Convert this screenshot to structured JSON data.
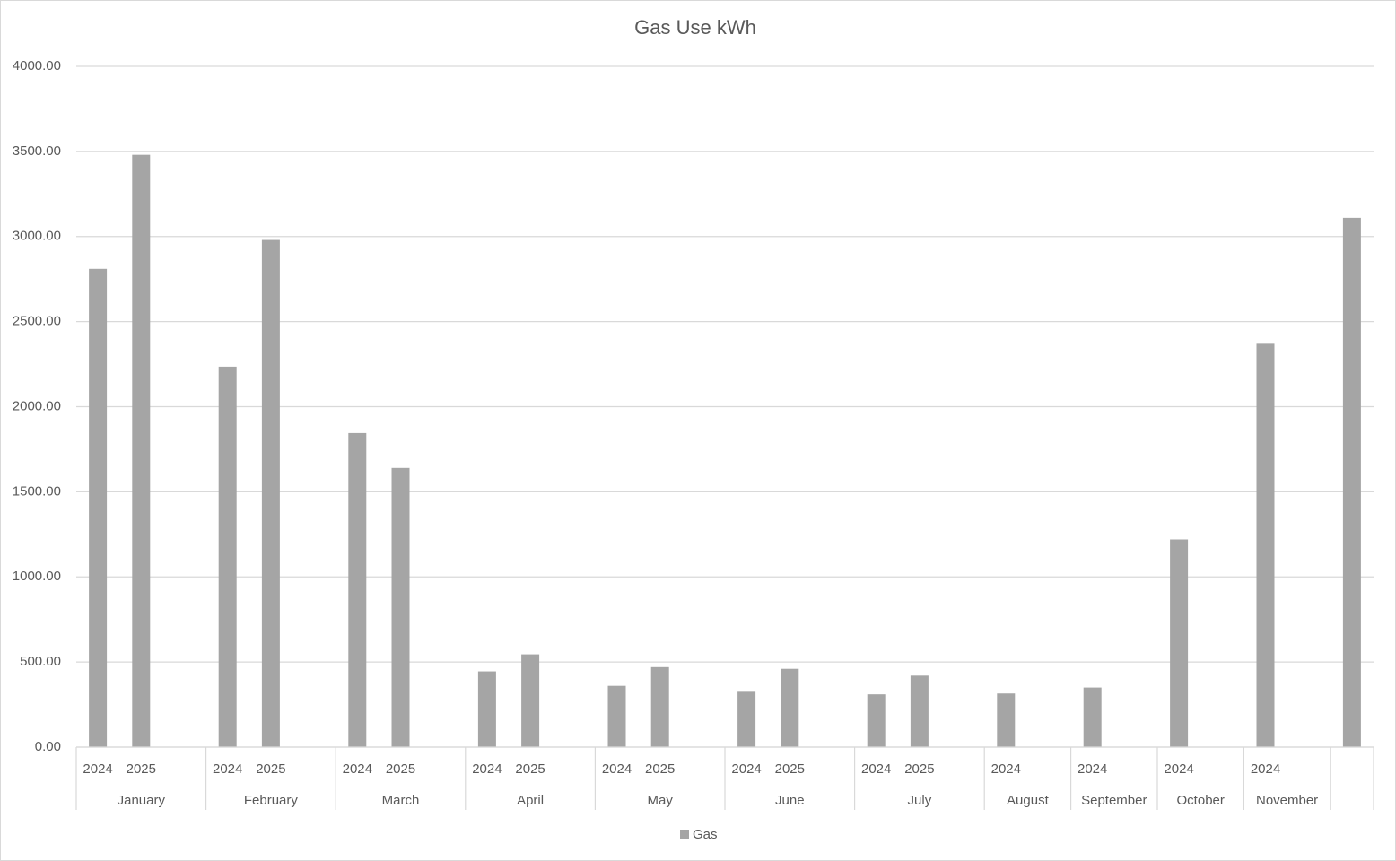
{
  "chart_data": {
    "type": "bar",
    "title": "Gas Use kWh",
    "categories": [
      "2024",
      "2025",
      null,
      "2024",
      "2025",
      null,
      "2024",
      "2025",
      null,
      "2024",
      "2025",
      null,
      "2024",
      "2025",
      null,
      "2024",
      "2025",
      null,
      "2024",
      "2025",
      null,
      "2024",
      null,
      "2024",
      null,
      "2024",
      null,
      "2024",
      null,
      null
    ],
    "groups": [
      {
        "name": "January",
        "count": 3
      },
      {
        "name": "February",
        "count": 3
      },
      {
        "name": "March",
        "count": 3
      },
      {
        "name": "April",
        "count": 3
      },
      {
        "name": "May",
        "count": 3
      },
      {
        "name": "June",
        "count": 3
      },
      {
        "name": "July",
        "count": 3
      },
      {
        "name": "August",
        "count": 2
      },
      {
        "name": "September",
        "count": 2
      },
      {
        "name": "October",
        "count": 2
      },
      {
        "name": "November",
        "count": 2
      },
      {
        "name": null,
        "count": 1
      }
    ],
    "series": [
      {
        "name": "Gas",
        "color": "#a5a5a5",
        "values": [
          2810,
          3480,
          null,
          2235,
          2980,
          null,
          1845,
          1640,
          null,
          445,
          545,
          null,
          360,
          470,
          null,
          325,
          460,
          null,
          310,
          420,
          null,
          315,
          null,
          350,
          null,
          1220,
          null,
          2375,
          null,
          3110
        ]
      }
    ],
    "ylim": [
      0,
      4000
    ],
    "yticks": [
      {
        "value": 0,
        "label": "0.00"
      },
      {
        "value": 500,
        "label": "500.00"
      },
      {
        "value": 1000,
        "label": "1000.00"
      },
      {
        "value": 1500,
        "label": "1500.00"
      },
      {
        "value": 2000,
        "label": "2000.00"
      },
      {
        "value": 2500,
        "label": "2500.00"
      },
      {
        "value": 3000,
        "label": "3000.00"
      },
      {
        "value": 3500,
        "label": "3500.00"
      },
      {
        "value": 4000,
        "label": "4000.00"
      }
    ],
    "grid": true,
    "legend": "bottom"
  }
}
